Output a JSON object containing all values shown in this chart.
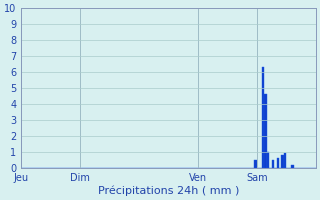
{
  "title": "",
  "xlabel": "Précipitations 24h ( mm )",
  "ylabel": "",
  "ylim": [
    0,
    10
  ],
  "yticks": [
    0,
    1,
    2,
    3,
    4,
    5,
    6,
    7,
    8,
    9,
    10
  ],
  "background_color": "#d8f0f0",
  "bar_color": "#1040cc",
  "bar_edge_color": "#1858e8",
  "grid_color": "#aacccc",
  "day_labels": [
    "Jeu",
    "Dim",
    "Ven",
    "Sam"
  ],
  "day_positions": [
    0,
    24,
    72,
    96
  ],
  "bar_values": [
    0,
    0,
    0,
    0,
    0,
    0,
    0,
    0,
    0,
    0,
    0,
    0,
    0,
    0,
    0,
    0,
    0,
    0,
    0,
    0,
    0,
    0,
    0,
    0,
    0,
    0,
    0,
    0,
    0,
    0,
    0,
    0,
    0,
    0,
    0,
    0,
    0,
    0,
    0,
    0,
    0,
    0,
    0,
    0,
    0,
    0,
    0,
    0,
    0,
    0,
    0,
    0,
    0,
    0,
    0,
    0,
    0,
    0,
    0,
    0,
    0,
    0,
    0,
    0,
    0,
    0,
    0,
    0,
    0,
    0,
    0,
    0,
    0,
    0,
    0,
    0,
    0,
    0,
    0,
    0,
    0,
    0,
    0,
    0,
    0,
    0,
    0,
    0,
    0,
    0,
    0,
    0,
    0,
    0,
    0,
    0.5,
    0,
    0,
    6.3,
    4.6,
    1.0,
    0,
    0.5,
    0,
    0.6,
    0,
    0.8,
    0.9,
    0,
    0,
    0.2,
    0,
    0,
    0,
    0,
    0,
    0,
    0,
    0,
    0
  ]
}
